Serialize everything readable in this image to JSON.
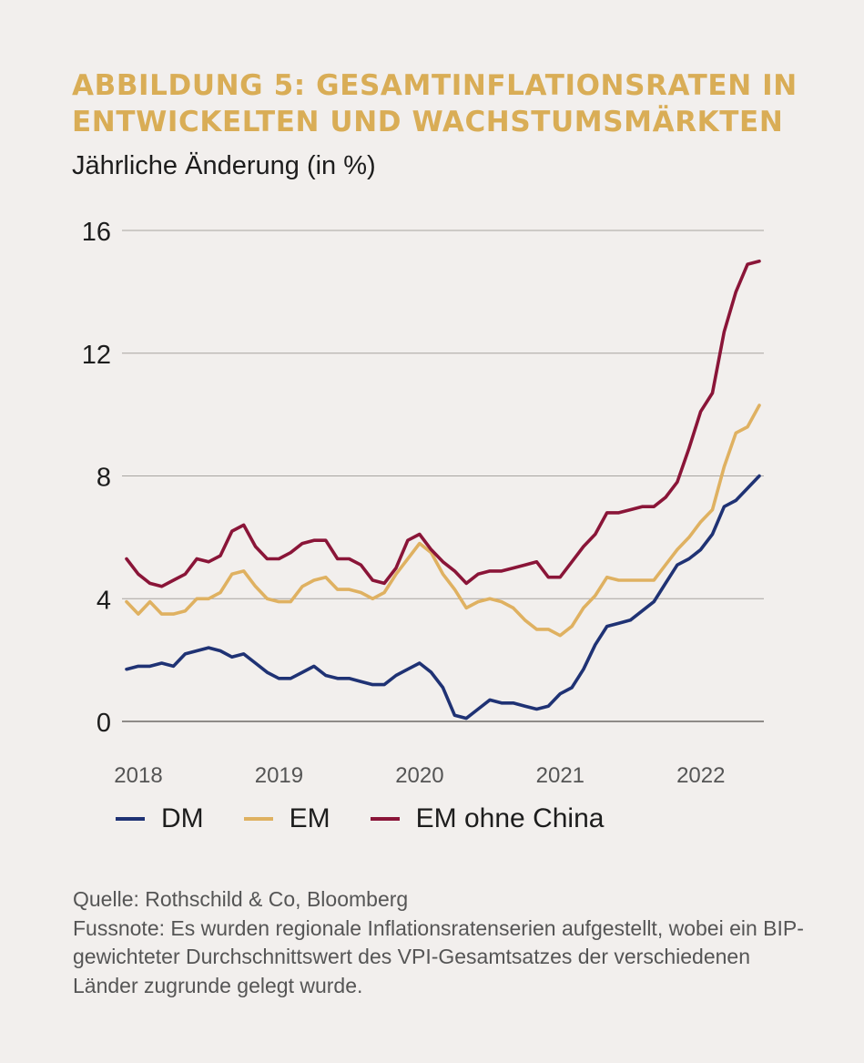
{
  "title": "ABBILDUNG 5: GESAMTINFLATIONSRATEN IN ENTWICKELTEN UND WACHSTUMSMÄRKTEN",
  "subtitle": "Jährliche Änderung (in %)",
  "source": "Quelle: Rothschild & Co, Bloomberg",
  "footnote": "Fussnote: Es wurden regionale Inflationsratenserien aufgestellt, wobei ein BIP-gewichteter Durchschnittswert des VPI-Gesamtsatzes der verschiedenen Länder zugrunde gelegt wurde.",
  "colors": {
    "dm": "#1f3274",
    "em": "#dfb161",
    "em_ohne_china": "#8a1538",
    "title": "#d9ad56",
    "grid": "#a8a4a0"
  },
  "chart_data": {
    "type": "line",
    "title": "ABBILDUNG 5: GESAMTINFLATIONSRATEN IN ENTWICKELTEN UND WACHSTUMSMÄRKTEN",
    "subtitle": "Jährliche Änderung (in %)",
    "ylim": [
      0,
      16
    ],
    "yticks": [
      "0",
      "4",
      "8",
      "12",
      "16"
    ],
    "x_range": [
      "2018-01",
      "2022-07"
    ],
    "xticks": [
      "2018",
      "2019",
      "2020",
      "2021",
      "2022"
    ],
    "grid": true,
    "legend_position": "bottom",
    "x": [
      "2018-01",
      "2018-02",
      "2018-03",
      "2018-04",
      "2018-05",
      "2018-06",
      "2018-07",
      "2018-08",
      "2018-09",
      "2018-10",
      "2018-11",
      "2018-12",
      "2019-01",
      "2019-02",
      "2019-03",
      "2019-04",
      "2019-05",
      "2019-06",
      "2019-07",
      "2019-08",
      "2019-09",
      "2019-10",
      "2019-11",
      "2019-12",
      "2020-01",
      "2020-02",
      "2020-03",
      "2020-04",
      "2020-05",
      "2020-06",
      "2020-07",
      "2020-08",
      "2020-09",
      "2020-10",
      "2020-11",
      "2020-12",
      "2021-01",
      "2021-02",
      "2021-03",
      "2021-04",
      "2021-05",
      "2021-06",
      "2021-07",
      "2021-08",
      "2021-09",
      "2021-10",
      "2021-11",
      "2021-12",
      "2022-01",
      "2022-02",
      "2022-03",
      "2022-04",
      "2022-05",
      "2022-06",
      "2022-07"
    ],
    "series": [
      {
        "name": "DM",
        "color": "#1f3274",
        "values": [
          1.7,
          1.8,
          1.8,
          1.9,
          1.8,
          2.2,
          2.3,
          2.4,
          2.3,
          2.1,
          2.2,
          1.9,
          1.6,
          1.4,
          1.4,
          1.6,
          1.8,
          1.5,
          1.4,
          1.4,
          1.3,
          1.2,
          1.2,
          1.5,
          1.7,
          1.9,
          1.6,
          1.1,
          0.2,
          0.1,
          0.4,
          0.7,
          0.6,
          0.6,
          0.5,
          0.4,
          0.5,
          0.9,
          1.1,
          1.7,
          2.5,
          3.1,
          3.2,
          3.3,
          3.6,
          3.9,
          4.5,
          5.1,
          5.3,
          5.6,
          6.1,
          7.0,
          7.2,
          7.6,
          8.0
        ]
      },
      {
        "name": "EM",
        "color": "#dfb161",
        "values": [
          3.9,
          3.5,
          3.9,
          3.5,
          3.5,
          3.6,
          4.0,
          4.0,
          4.2,
          4.8,
          4.9,
          4.4,
          4.0,
          3.9,
          3.9,
          4.4,
          4.6,
          4.7,
          4.3,
          4.3,
          4.2,
          4.0,
          4.2,
          4.8,
          5.3,
          5.8,
          5.5,
          4.8,
          4.3,
          3.7,
          3.9,
          4.0,
          3.9,
          3.7,
          3.3,
          3.0,
          3.0,
          2.8,
          3.1,
          3.7,
          4.1,
          4.7,
          4.6,
          4.6,
          4.6,
          4.6,
          5.1,
          5.6,
          6.0,
          6.5,
          6.9,
          8.3,
          9.4,
          9.6,
          10.3
        ]
      },
      {
        "name": "EM ohne China",
        "color": "#8a1538",
        "values": [
          5.3,
          4.8,
          4.5,
          4.4,
          4.6,
          4.8,
          5.3,
          5.2,
          5.4,
          6.2,
          6.4,
          5.7,
          5.3,
          5.3,
          5.5,
          5.8,
          5.9,
          5.9,
          5.3,
          5.3,
          5.1,
          4.6,
          4.5,
          5.0,
          5.9,
          6.1,
          5.6,
          5.2,
          4.9,
          4.5,
          4.8,
          4.9,
          4.9,
          5.0,
          5.1,
          5.2,
          4.7,
          4.7,
          5.2,
          5.7,
          6.1,
          6.8,
          6.8,
          6.9,
          7.0,
          7.0,
          7.3,
          7.8,
          8.9,
          10.1,
          10.7,
          12.7,
          14.0,
          14.9,
          15.0
        ]
      }
    ]
  }
}
